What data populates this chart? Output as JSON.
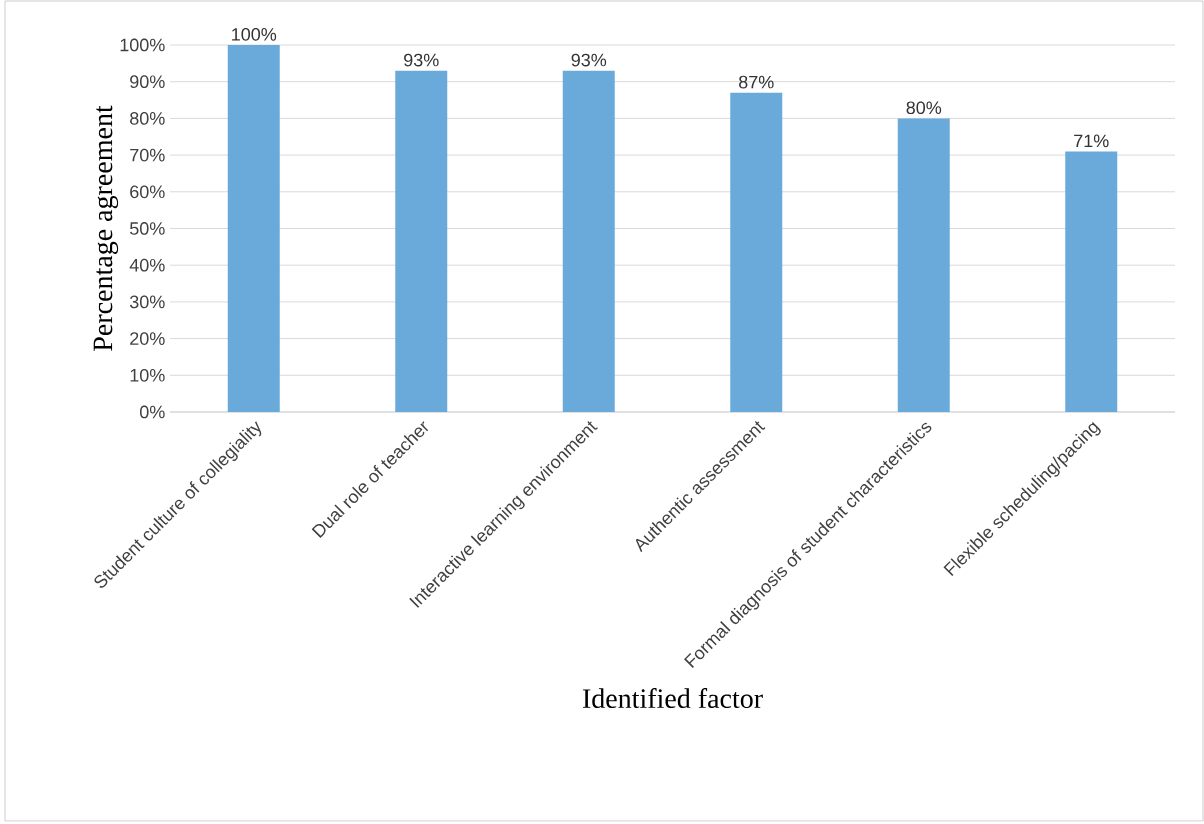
{
  "chart_data": {
    "type": "bar",
    "xlabel": "Identified factor",
    "ylabel": "Percentage agreement",
    "categories": [
      "Student culture of collegiality",
      "Dual role of teacher",
      "Interactive learning environment",
      "Authentic assessment",
      "Formal diagnosis of student characteristics",
      "Flexible scheduling/pacing"
    ],
    "values": [
      100,
      93,
      93,
      87,
      80,
      71
    ],
    "value_labels": [
      "100%",
      "93%",
      "93%",
      "87%",
      "80%",
      "71%"
    ],
    "color": "#6aaadb",
    "ylim": [
      0,
      100
    ],
    "yticks": [
      {
        "value": 0,
        "label": "0%"
      },
      {
        "value": 10,
        "label": "10%"
      },
      {
        "value": 20,
        "label": "20%"
      },
      {
        "value": 30,
        "label": "30%"
      },
      {
        "value": 40,
        "label": "40%"
      },
      {
        "value": 50,
        "label": "50%"
      },
      {
        "value": 60,
        "label": "60%"
      },
      {
        "value": 70,
        "label": "70%"
      },
      {
        "value": 80,
        "label": "80%"
      },
      {
        "value": 90,
        "label": "90%"
      },
      {
        "value": 100,
        "label": "100%"
      }
    ],
    "grid": "y"
  }
}
